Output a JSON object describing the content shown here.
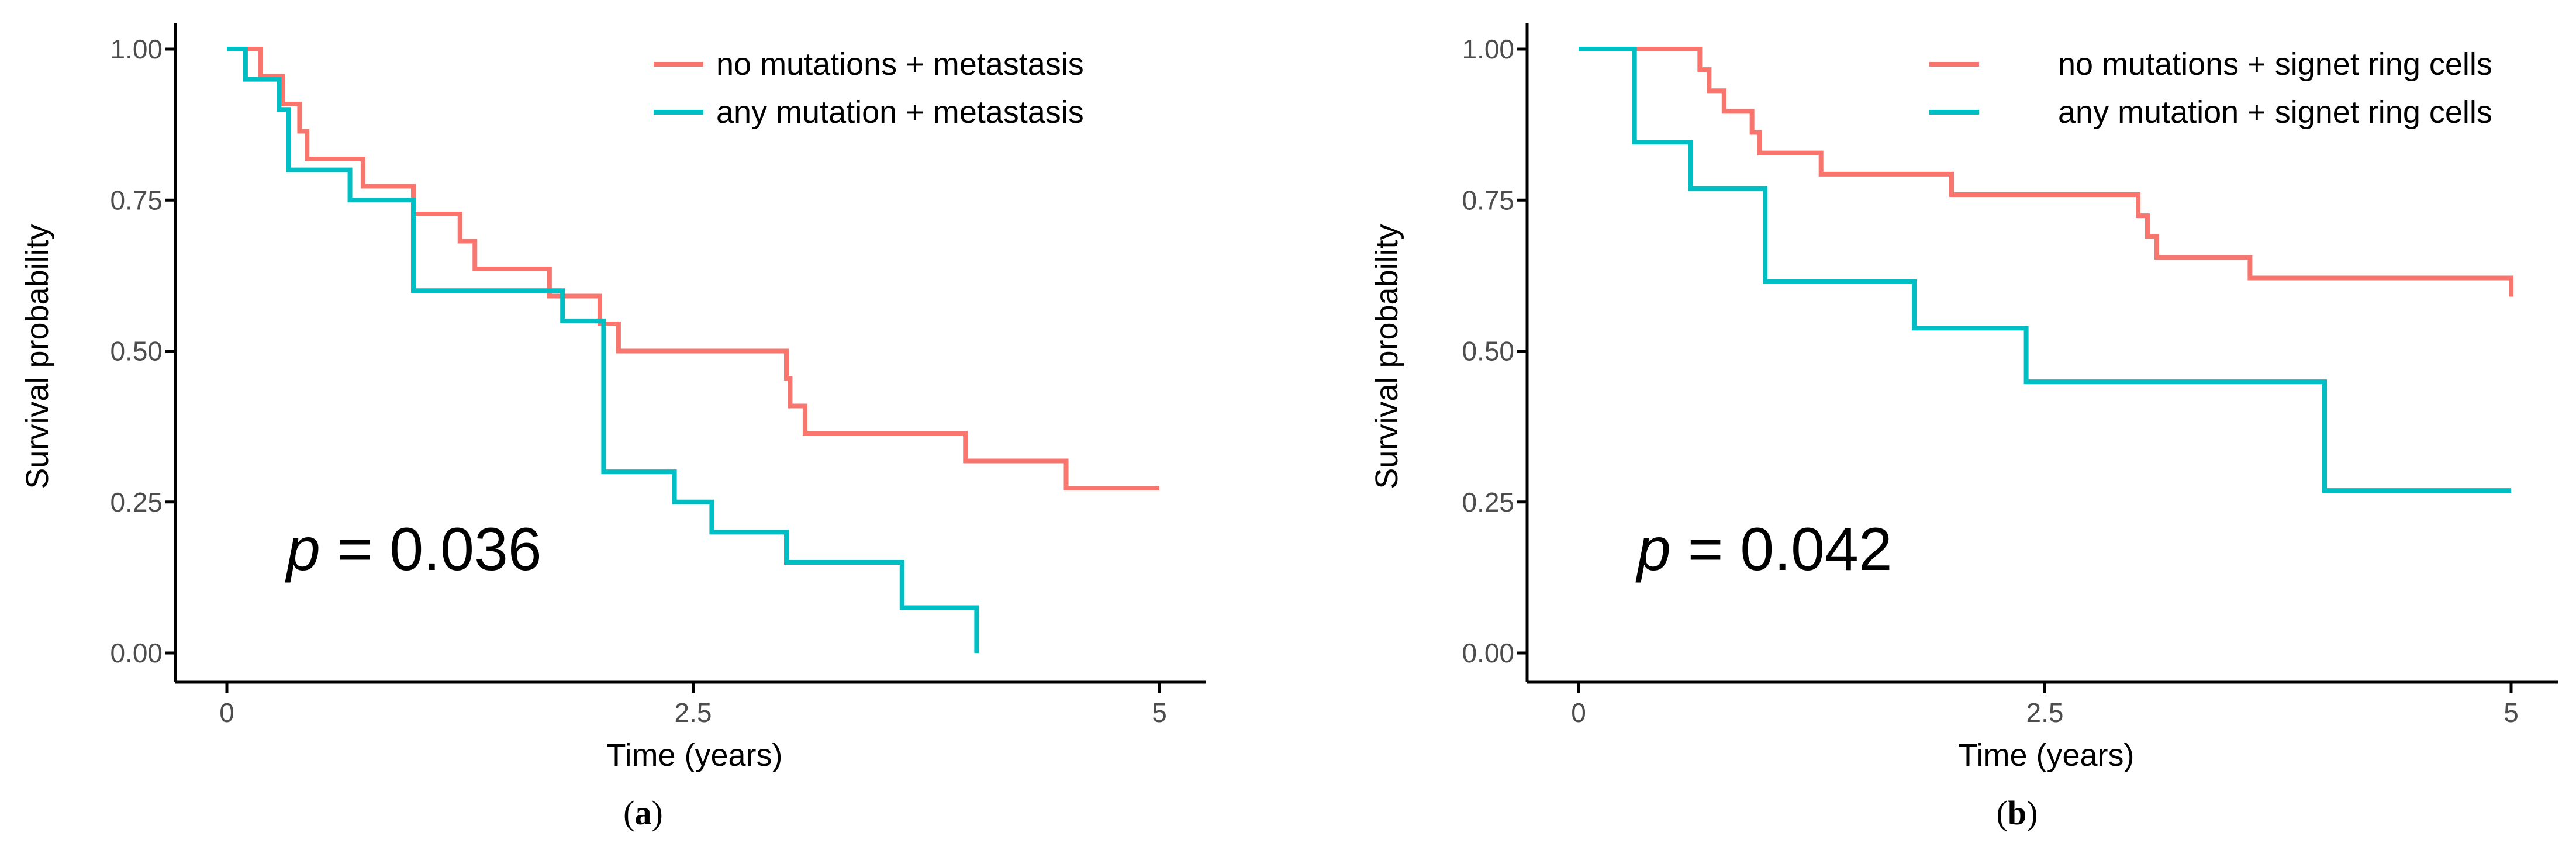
{
  "colors": {
    "series_a": "#F8766D",
    "series_b": "#00BFC4",
    "axis": "#000000",
    "tick_text": "#4D4D4D",
    "text": "#000000"
  },
  "chart_data": [
    {
      "type": "line",
      "subtype": "kaplan-meier step",
      "panel_label": "a",
      "xlabel": "Time (years)",
      "ylabel": "Survival probability",
      "xlim": [
        0,
        5
      ],
      "ylim": [
        0,
        1
      ],
      "xticks": [
        0,
        2.5,
        5
      ],
      "xtick_labels": [
        "0",
        "2.5",
        "5"
      ],
      "yticks": [
        0,
        0.25,
        0.5,
        0.75,
        1
      ],
      "ytick_labels": [
        "0.00",
        "0.25",
        "0.50",
        "0.75",
        "1.00"
      ],
      "grid": false,
      "legend_position": "top-right",
      "annotation": {
        "p_symbol": "p",
        "p_text": " = 0.036"
      },
      "series": [
        {
          "name": "no mutations + metastasis",
          "color": "#F8766D",
          "x": [
            0,
            0.18,
            0.3,
            0.39,
            0.43,
            0.73,
            1.0,
            1.25,
            1.33,
            1.73,
            2.0,
            2.1,
            3.0,
            3.02,
            3.1,
            3.96,
            4.5,
            5.0
          ],
          "y": [
            1.0,
            0.955,
            0.909,
            0.864,
            0.818,
            0.773,
            0.727,
            0.682,
            0.636,
            0.591,
            0.545,
            0.5,
            0.455,
            0.409,
            0.364,
            0.318,
            0.273,
            0.273
          ]
        },
        {
          "name": "any mutation + metastasis",
          "color": "#00BFC4",
          "x": [
            0,
            0.1,
            0.28,
            0.33,
            0.66,
            1.0,
            1.8,
            2.02,
            2.4,
            2.6,
            3.0,
            3.62,
            4.02
          ],
          "y": [
            1.0,
            0.95,
            0.9,
            0.8,
            0.75,
            0.6,
            0.55,
            0.3,
            0.25,
            0.2,
            0.15,
            0.075,
            0.0
          ]
        }
      ]
    },
    {
      "type": "line",
      "subtype": "kaplan-meier step",
      "panel_label": "b",
      "xlabel": "Time (years)",
      "ylabel": "Survival probability",
      "xlim": [
        0,
        5
      ],
      "ylim": [
        0,
        1
      ],
      "xticks": [
        0,
        2.5,
        5
      ],
      "xtick_labels": [
        "0",
        "2.5",
        "5"
      ],
      "yticks": [
        0,
        0.25,
        0.5,
        0.75,
        1
      ],
      "ytick_labels": [
        "0.00",
        "0.25",
        "0.50",
        "0.75",
        "1.00"
      ],
      "grid": false,
      "legend_position": "top-right",
      "annotation": {
        "p_symbol": "p",
        "p_text": " = 0.042"
      },
      "series": [
        {
          "name": "no mutations + signet ring cells",
          "color": "#F8766D",
          "x": [
            0,
            0.65,
            0.7,
            0.78,
            0.93,
            0.97,
            1.0,
            1.3,
            2.0,
            3.0,
            3.05,
            3.1,
            3.6,
            5.0
          ],
          "y": [
            1.0,
            0.966,
            0.931,
            0.897,
            0.862,
            0.828,
            0.828,
            0.793,
            0.759,
            0.724,
            0.69,
            0.655,
            0.621,
            0.59
          ]
        },
        {
          "name": "any mutation + signet ring cells",
          "color": "#00BFC4",
          "x": [
            0,
            0.3,
            0.6,
            1.0,
            1.8,
            2.4,
            4.0,
            5.0
          ],
          "y": [
            1.0,
            0.846,
            0.769,
            0.615,
            0.538,
            0.449,
            0.269,
            0.269
          ]
        }
      ]
    }
  ]
}
